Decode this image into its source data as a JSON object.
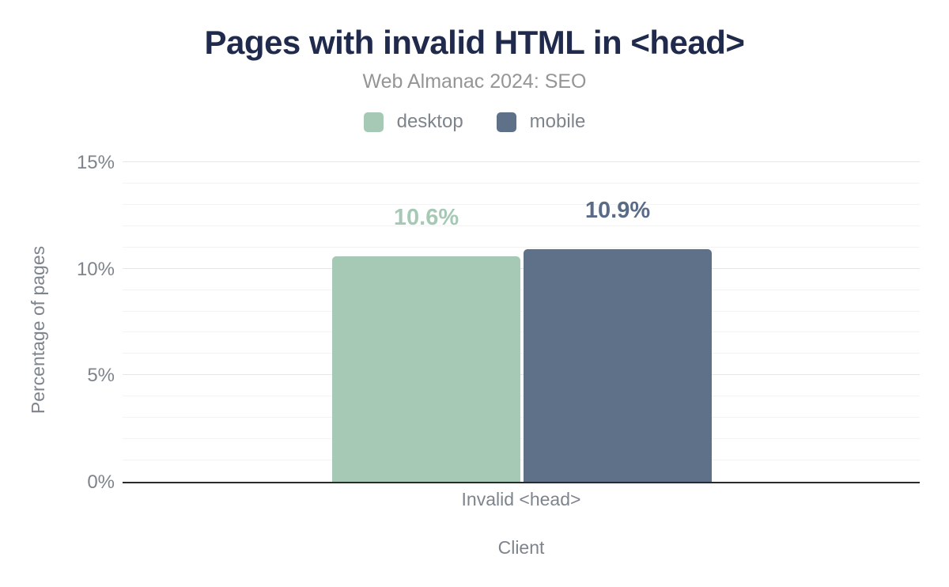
{
  "figure": {
    "title": "Pages with invalid HTML in <head>",
    "subtitle": "Web Almanac 2024: SEO"
  },
  "legend": {
    "items": [
      {
        "label": "desktop",
        "color": "#a6c9b6"
      },
      {
        "label": "mobile",
        "color": "#5f7089"
      }
    ]
  },
  "axes": {
    "y_title": "Percentage of pages",
    "y_ticks": [
      "15%",
      "10%",
      "5%",
      "0%"
    ],
    "x_title": "Client",
    "x_categories": [
      "Invalid <head>"
    ]
  },
  "chart_data": {
    "type": "bar",
    "title": "Pages with invalid HTML in <head>",
    "subtitle": "Web Almanac 2024: SEO",
    "categories": [
      "Invalid <head>"
    ],
    "series": [
      {
        "name": "desktop",
        "values": [
          10.6
        ],
        "value_labels": [
          "10.6%"
        ],
        "color": "#a6c9b6",
        "label_color": "#a6c9b6"
      },
      {
        "name": "mobile",
        "values": [
          10.9
        ],
        "value_labels": [
          "10.9%"
        ],
        "color": "#5f7089",
        "label_color": "#5a6b88"
      }
    ],
    "xlabel": "Client",
    "ylabel": "Percentage of pages",
    "ylim": [
      0,
      15
    ],
    "ytick_labels": [
      "0%",
      "5%",
      "10%",
      "15%"
    ],
    "ytick_major_interval": 5,
    "ytick_minor_interval": 1,
    "grid": "horizontal",
    "legend_position": "top"
  },
  "colors": {
    "title_color": "#1f2a4d",
    "subtitle_color": "#959595",
    "axis_text": "#7e848c",
    "axis_line": "#2a2a2a",
    "grid_minor": "#f3f3f3",
    "grid_major": "#e7e7e7",
    "background": "#ffffff"
  }
}
